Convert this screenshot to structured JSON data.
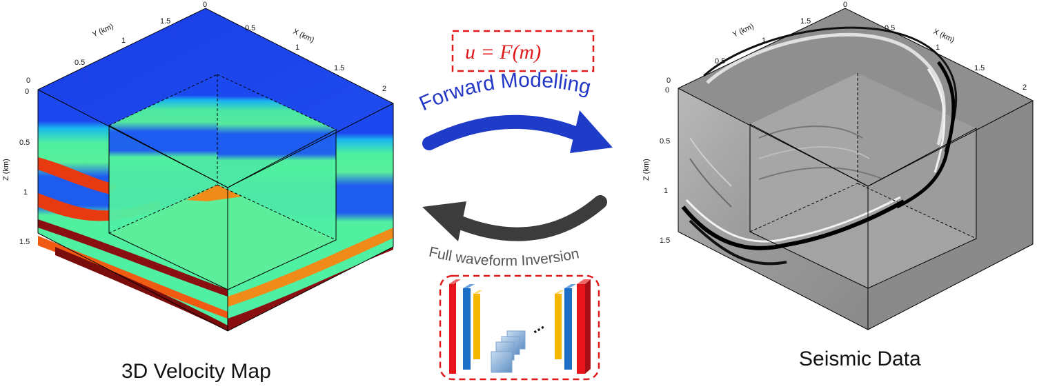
{
  "left_panel": {
    "caption": "3D Velocity Map",
    "axis_y_title": "Y (km)",
    "axis_x_title": "X (km)",
    "axis_z_title": "Z (km)",
    "y_ticks": [
      "0.5",
      "1",
      "1.5",
      "0"
    ],
    "x_ticks": [
      "0",
      "0.5",
      "1",
      "1.5",
      "2"
    ],
    "z_ticks": [
      "0",
      "0.5",
      "1",
      "1.5"
    ],
    "corner_tick": "0"
  },
  "right_panel": {
    "caption": "Seismic Data",
    "axis_y_title": "Y (km)",
    "axis_x_title": "X (km)",
    "axis_z_title": "Z (km)",
    "y_ticks": [
      "0.5",
      "1",
      "1.5",
      "0"
    ],
    "x_ticks": [
      "0",
      "0.5",
      "1",
      "1.5",
      "2"
    ],
    "z_ticks": [
      "0",
      "0.5",
      "1",
      "1.5"
    ],
    "corner_tick": "0"
  },
  "center": {
    "formula": "u = F(m)",
    "forward_label": "Forward Modelling",
    "inverse_label": "Full waveform Inversion",
    "forward_color": "#1f3cc8",
    "inverse_color": "#3c3c3c",
    "box_border_color": "#e0191b",
    "network_colors": [
      "#e8141c",
      "#1c6fc6",
      "#f5b800",
      "#8fb0d8"
    ],
    "ellipsis": "..."
  }
}
